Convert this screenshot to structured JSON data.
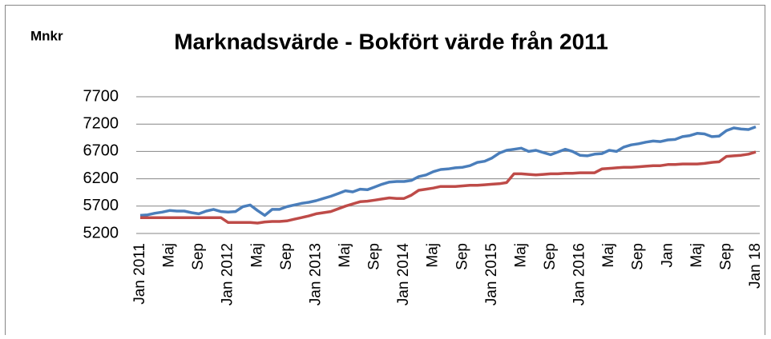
{
  "chart_data": {
    "type": "line",
    "title": "Marknadsvärde - Bokfört värde från 2011",
    "y_label": "Mnkr",
    "categories": [
      "Jan 2011",
      null,
      null,
      null,
      "Maj",
      null,
      null,
      null,
      "Sep",
      null,
      null,
      null,
      "Jan 2012",
      null,
      null,
      null,
      "Maj",
      null,
      null,
      null,
      "Sep",
      null,
      null,
      null,
      "Jan 2013",
      null,
      null,
      null,
      "Maj",
      null,
      null,
      null,
      "Sep",
      null,
      null,
      null,
      "Jan 2014",
      null,
      null,
      null,
      "Maj",
      null,
      null,
      null,
      "Sep",
      null,
      null,
      null,
      "Jan 2015",
      null,
      null,
      null,
      "Maj",
      null,
      null,
      null,
      "Sep",
      null,
      null,
      null,
      "Jan 2016",
      null,
      null,
      null,
      "Maj",
      null,
      null,
      null,
      "Sep",
      null,
      null,
      null,
      "Jan",
      null,
      null,
      null,
      "Maj",
      null,
      null,
      null,
      "Sep",
      null,
      null,
      null,
      "Jan 18"
    ],
    "series": [
      {
        "color": "#4a7ebb",
        "values": [
          5530,
          5540,
          5570,
          5590,
          5620,
          5610,
          5610,
          5580,
          5560,
          5610,
          5640,
          5600,
          5590,
          5600,
          5690,
          5720,
          5620,
          5530,
          5640,
          5640,
          5690,
          5720,
          5750,
          5770,
          5800,
          5840,
          5880,
          5930,
          5980,
          5960,
          6010,
          6000,
          6050,
          6100,
          6140,
          6150,
          6150,
          6170,
          6240,
          6270,
          6330,
          6370,
          6380,
          6400,
          6410,
          6440,
          6500,
          6520,
          6580,
          6670,
          6720,
          6740,
          6760,
          6700,
          6720,
          6680,
          6640,
          6690,
          6740,
          6700,
          6630,
          6620,
          6650,
          6660,
          6720,
          6700,
          6780,
          6820,
          6840,
          6870,
          6890,
          6880,
          6910,
          6920,
          6970,
          6990,
          7030,
          7020,
          6970,
          6980,
          7080,
          7130,
          7110,
          7100,
          7150
        ]
      },
      {
        "color": "#be4b48",
        "values": [
          5490,
          5490,
          5490,
          5490,
          5490,
          5490,
          5490,
          5490,
          5490,
          5490,
          5490,
          5490,
          5400,
          5400,
          5400,
          5400,
          5390,
          5410,
          5420,
          5420,
          5430,
          5460,
          5490,
          5520,
          5560,
          5580,
          5600,
          5650,
          5700,
          5740,
          5780,
          5790,
          5810,
          5830,
          5850,
          5840,
          5840,
          5900,
          5990,
          6010,
          6030,
          6060,
          6060,
          6060,
          6070,
          6080,
          6080,
          6090,
          6100,
          6110,
          6130,
          6290,
          6290,
          6280,
          6270,
          6280,
          6290,
          6290,
          6300,
          6300,
          6310,
          6310,
          6310,
          6380,
          6390,
          6400,
          6410,
          6410,
          6420,
          6430,
          6440,
          6440,
          6460,
          6460,
          6470,
          6470,
          6470,
          6480,
          6500,
          6510,
          6610,
          6620,
          6630,
          6650,
          6690
        ]
      }
    ],
    "ylim": [
      5200,
      7700
    ],
    "yticks": [
      5200,
      5700,
      6200,
      6700,
      7200,
      7700
    ],
    "grid": true
  }
}
